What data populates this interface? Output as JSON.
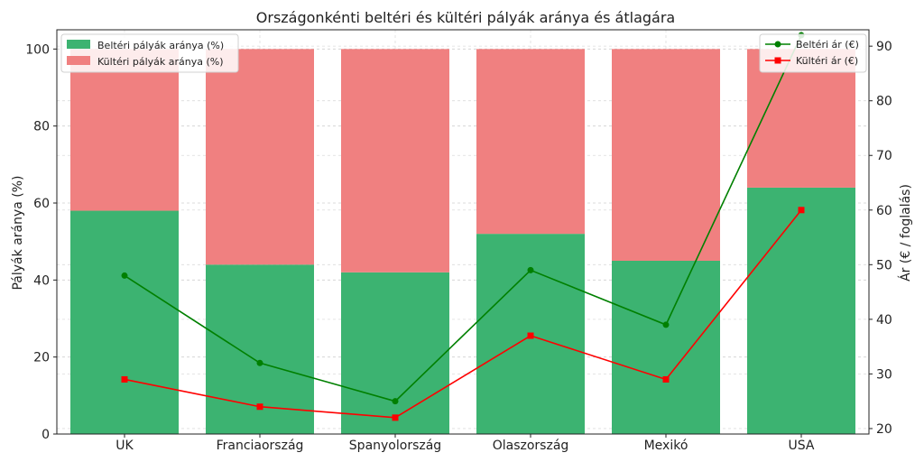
{
  "chart_data": {
    "type": "bar",
    "title": "Országonkénti beltéri és kültéri pályák aránya és átlagára",
    "categories": [
      "UK",
      "Franciaország",
      "Spanyolország",
      "Olaszország",
      "Mexikó",
      "USA"
    ],
    "ylabel": "Pályák aránya (%)",
    "y2label": "Ár (€ / foglalás)",
    "ylim": [
      0,
      105
    ],
    "y2lim": [
      19,
      93
    ],
    "yticks": [
      0,
      20,
      40,
      60,
      80,
      100
    ],
    "y2ticks": [
      20,
      30,
      40,
      50,
      60,
      70,
      80,
      90
    ],
    "grid": true,
    "bar_series": [
      {
        "name": "Beltéri pályák aránya (%)",
        "color": "#3cb371",
        "values": [
          58,
          44,
          42,
          52,
          45,
          64
        ]
      },
      {
        "name": "Kültéri pályák aránya (%)",
        "color": "#f08080",
        "values": [
          42,
          56,
          58,
          48,
          55,
          36
        ]
      }
    ],
    "line_series": [
      {
        "name": "Beltéri ár (€)",
        "color": "#008000",
        "marker": "circle",
        "values": [
          48,
          32,
          25,
          49,
          39,
          92
        ]
      },
      {
        "name": "Kültéri ár (€)",
        "color": "#ff0000",
        "marker": "square",
        "values": [
          29,
          24,
          22,
          37,
          29,
          60
        ]
      }
    ],
    "legend_bars_placement": "top-left",
    "legend_lines_placement": "top-right"
  }
}
